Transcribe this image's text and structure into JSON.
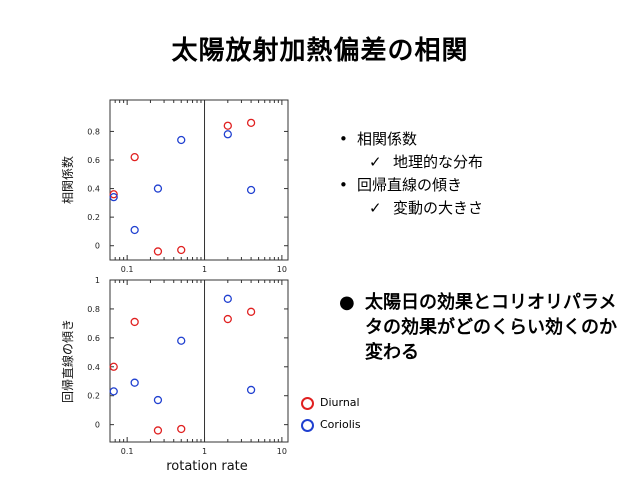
{
  "slide": {
    "title": "太陽放射加熱偏差の相関",
    "bullets": [
      {
        "label": "相関係数",
        "sub": "地理的な分布"
      },
      {
        "label": "回帰直線の傾き",
        "sub": "変動の大きさ"
      }
    ],
    "check_glyph": "✓",
    "big_bullet_glyph": "●",
    "big_bullet": "太陽日の効果とコリオリパラメタの効果がどのくらい効くのか変わる"
  },
  "legend": [
    {
      "name": "Diurnal",
      "color": "#e02020"
    },
    {
      "name": "Coriolis",
      "color": "#2040d0"
    }
  ],
  "chart_data": [
    {
      "type": "scatter",
      "title": "",
      "ylabel": "相関係数",
      "xlabel": "",
      "x_scale": "log",
      "xlim": [
        0.06,
        12
      ],
      "ylim": [
        -0.1,
        1.02
      ],
      "reference_line_x": 1,
      "yticks": [
        0,
        0.2,
        0.4,
        0.6,
        0.8
      ],
      "ytick_labels": [
        "0",
        "0.2",
        "0.4",
        "0.6",
        "0.8"
      ],
      "xticks": [
        0.1,
        1,
        10
      ],
      "xtick_labels": [
        "0.1",
        "1",
        "10"
      ],
      "series": [
        {
          "name": "Diurnal",
          "color": "#e02020",
          "x": [
            0.067,
            0.125,
            0.25,
            0.5,
            2,
            4
          ],
          "y": [
            0.36,
            0.62,
            -0.04,
            -0.03,
            0.84,
            0.86
          ]
        },
        {
          "name": "Coriolis",
          "color": "#2040d0",
          "x": [
            0.067,
            0.125,
            0.25,
            0.5,
            2,
            4
          ],
          "y": [
            0.34,
            0.11,
            0.4,
            0.74,
            0.78,
            0.39
          ]
        }
      ]
    },
    {
      "type": "scatter",
      "title": "",
      "ylabel": "回帰直線の傾き",
      "xlabel": "rotation rate",
      "x_scale": "log",
      "xlim": [
        0.06,
        12
      ],
      "ylim": [
        -0.12,
        1.0
      ],
      "reference_line_x": 1,
      "yticks": [
        0,
        0.2,
        0.4,
        0.6,
        0.8,
        1
      ],
      "ytick_labels": [
        "0",
        "0.2",
        "0.4",
        "0.6",
        "0.8",
        "1"
      ],
      "xticks": [
        0.1,
        1,
        10
      ],
      "xtick_labels": [
        "0.1",
        "1",
        "10"
      ],
      "series": [
        {
          "name": "Diurnal",
          "color": "#e02020",
          "x": [
            0.067,
            0.125,
            0.25,
            0.5,
            2,
            4
          ],
          "y": [
            0.4,
            0.71,
            -0.04,
            -0.03,
            0.73,
            0.78
          ]
        },
        {
          "name": "Coriolis",
          "color": "#2040d0",
          "x": [
            0.067,
            0.125,
            0.25,
            0.5,
            2,
            4
          ],
          "y": [
            0.23,
            0.29,
            0.17,
            0.58,
            0.87,
            0.24
          ]
        }
      ]
    }
  ]
}
